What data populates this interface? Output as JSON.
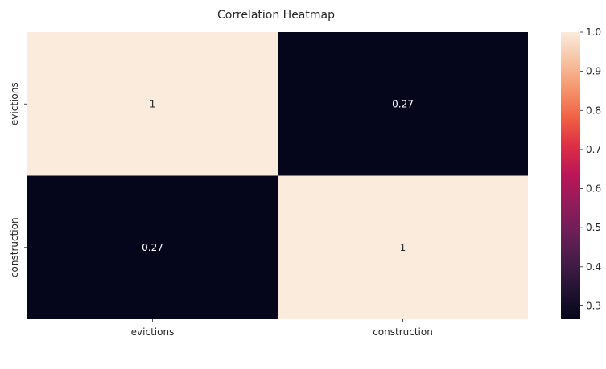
{
  "chart_data": {
    "type": "heatmap",
    "title": "Correlation Heatmap",
    "x_categories": [
      "evictions",
      "construction"
    ],
    "y_categories": [
      "evictions",
      "construction"
    ],
    "values": [
      [
        1,
        0.27
      ],
      [
        0.27,
        1
      ]
    ],
    "annotations": [
      [
        "1",
        "0.27"
      ],
      [
        "0.27",
        "1"
      ]
    ],
    "colorbar": {
      "min": 0.266,
      "max": 1.0,
      "ticks": [
        0.3,
        0.4,
        0.5,
        0.6,
        0.7,
        0.8,
        0.9,
        1.0
      ],
      "tick_labels": [
        "0.3",
        "0.4",
        "0.5",
        "0.6",
        "0.7",
        "0.8",
        "0.9",
        "1.0"
      ],
      "colormap": "rocket"
    },
    "annotation_text_colors": {
      "on_dark": "#ffffff",
      "on_light": "#262626"
    }
  }
}
